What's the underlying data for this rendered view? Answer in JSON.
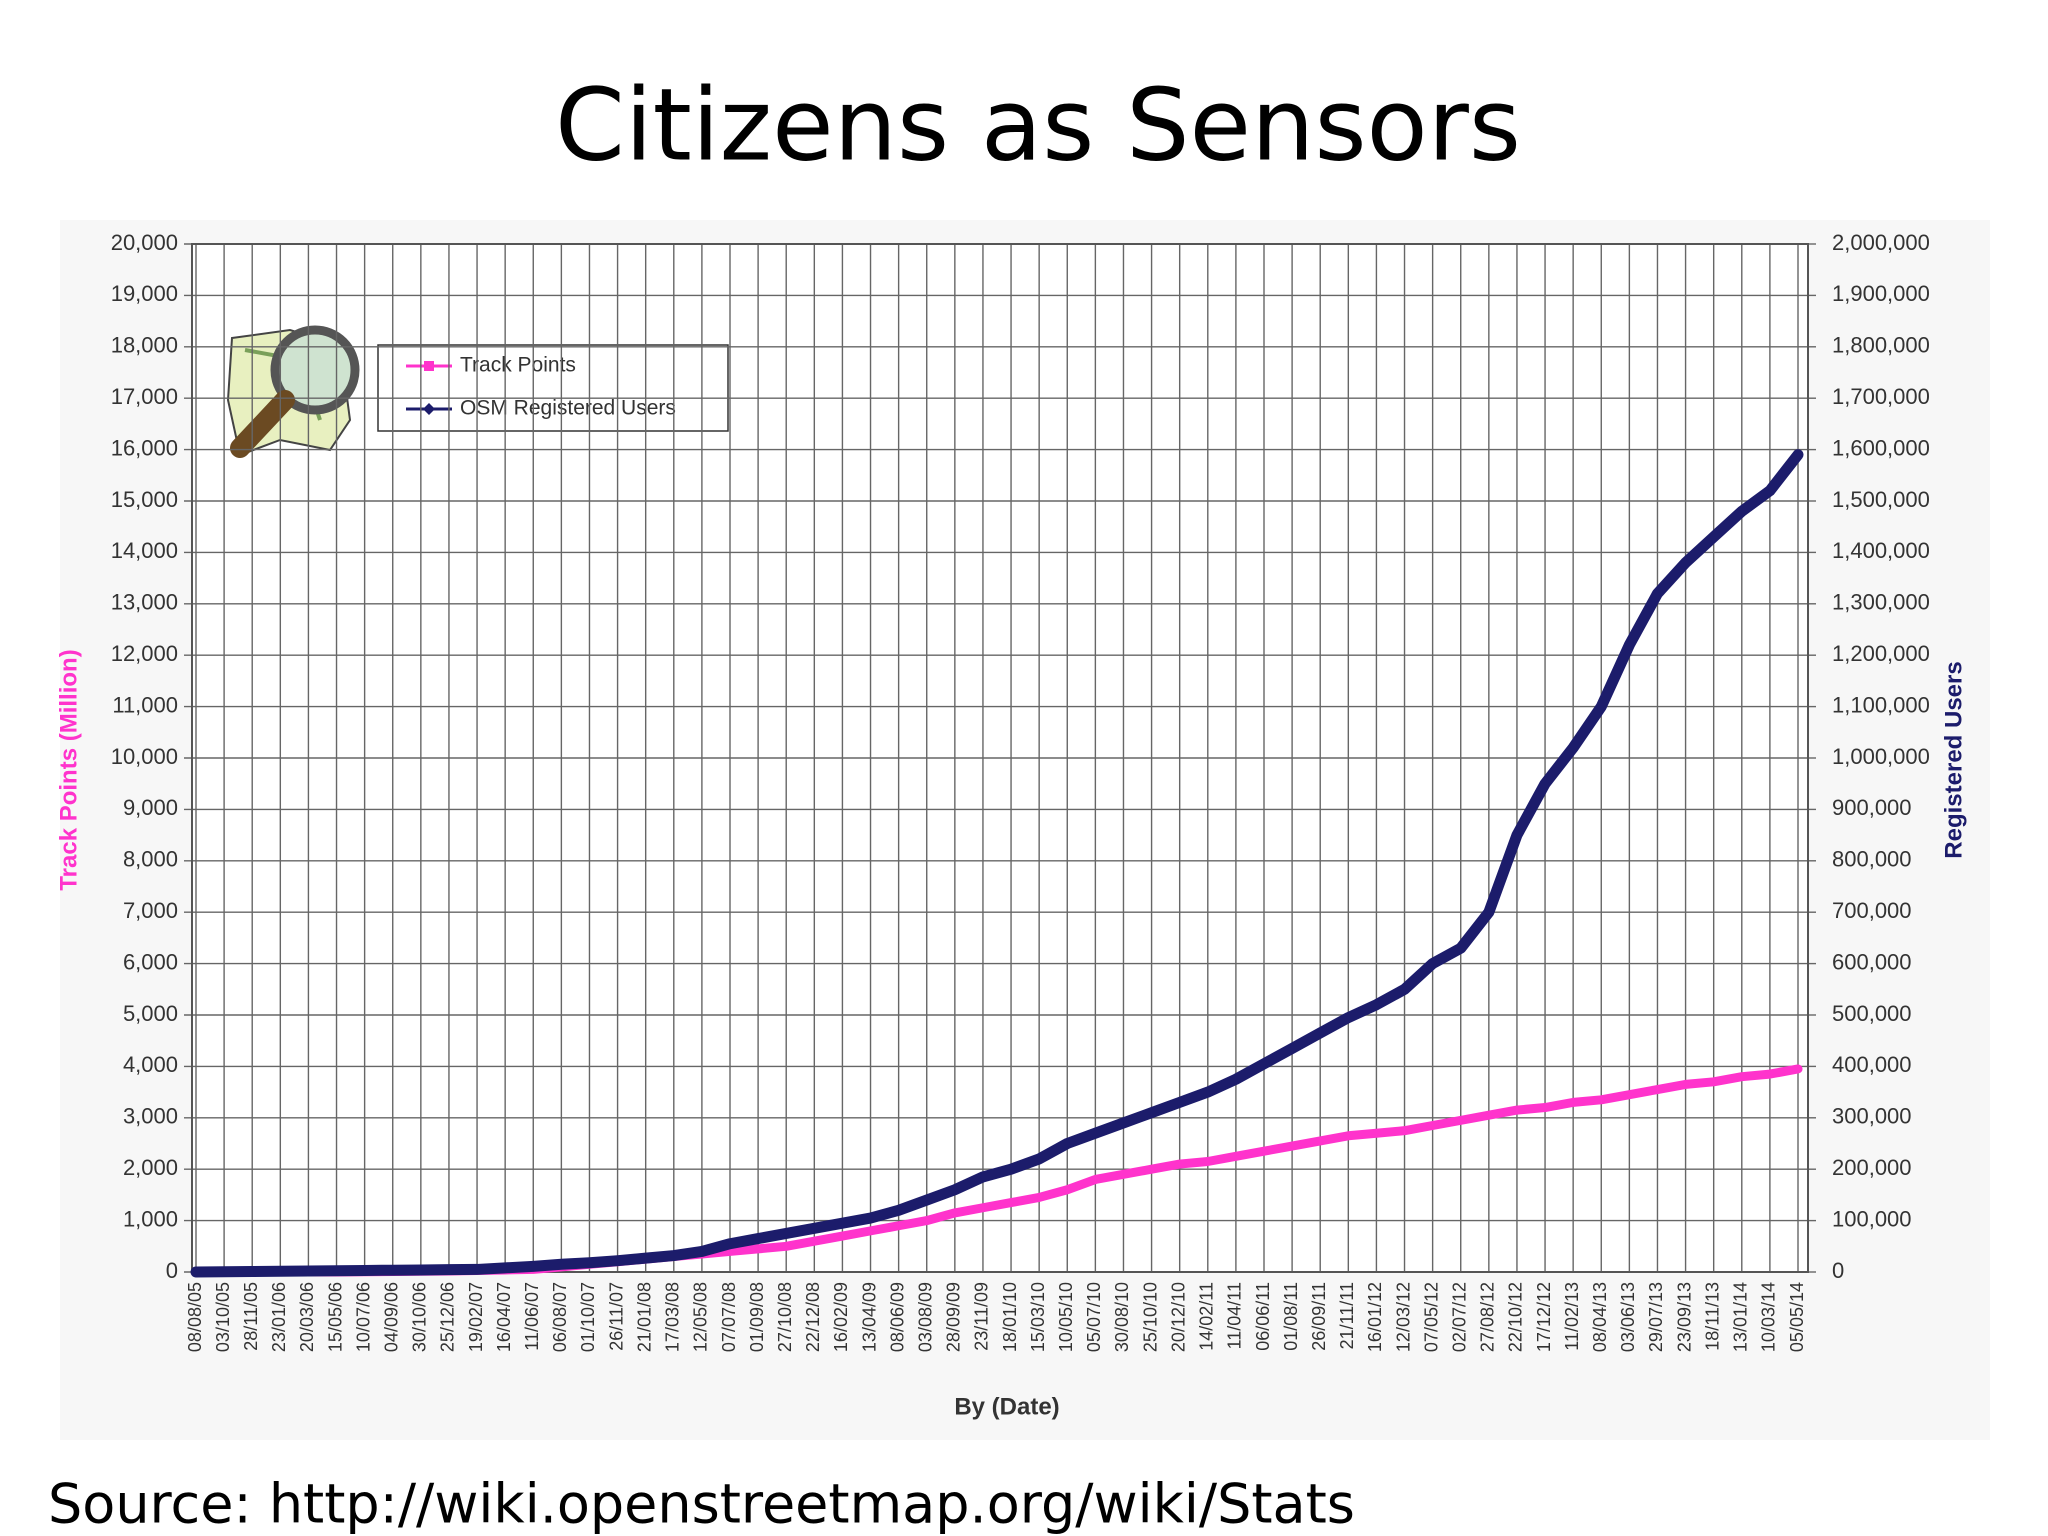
{
  "chart_data": {
    "type": "line",
    "title": "Citizens as Sensors",
    "source": "Source: http://wiki.openstreetmap.org/wiki/Stats",
    "xlabel": "By (Date)",
    "ylabel": "Track Points (Million)",
    "y2label": "Registered Users",
    "legend": "upper left",
    "grid": true,
    "categories": [
      "08/08/05",
      "03/10/05",
      "28/11/05",
      "23/01/06",
      "20/03/06",
      "15/05/06",
      "10/07/06",
      "04/09/06",
      "30/10/06",
      "25/12/06",
      "19/02/07",
      "16/04/07",
      "11/06/07",
      "06/08/07",
      "01/10/07",
      "26/11/07",
      "21/01/08",
      "17/03/08",
      "12/05/08",
      "07/07/08",
      "01/09/08",
      "27/10/08",
      "22/12/08",
      "16/02/09",
      "13/04/09",
      "08/06/09",
      "03/08/09",
      "28/09/09",
      "23/11/09",
      "18/01/10",
      "15/03/10",
      "10/05/10",
      "05/07/10",
      "30/08/10",
      "25/10/10",
      "20/12/10",
      "14/02/11",
      "11/04/11",
      "06/06/11",
      "01/08/11",
      "26/09/11",
      "21/11/11",
      "16/01/12",
      "12/03/12",
      "07/05/12",
      "02/07/12",
      "27/08/12",
      "22/10/12",
      "17/12/12",
      "11/02/13",
      "08/04/13",
      "03/06/13",
      "29/07/13",
      "23/09/13",
      "18/11/13",
      "13/01/14",
      "10/03/14",
      "05/05/14"
    ],
    "series": [
      {
        "name": "Track Points",
        "color": "#ff33cc",
        "axis": "y",
        "values": [
          0,
          0,
          0,
          0,
          0,
          0,
          5,
          10,
          15,
          20,
          30,
          40,
          50,
          100,
          150,
          200,
          250,
          300,
          350,
          400,
          450,
          500,
          600,
          700,
          800,
          900,
          1000,
          1150,
          1250,
          1350,
          1450,
          1600,
          1800,
          1900,
          2000,
          2100,
          2150,
          2250,
          2350,
          2450,
          2550,
          2650,
          2700,
          2750,
          2850,
          2950,
          3050,
          3150,
          3200,
          3300,
          3350,
          3450,
          3550,
          3650,
          3700,
          3800,
          3850,
          3950
        ]
      },
      {
        "name": "OSM Registered Users",
        "color": "#1c1c6b",
        "axis": "y2",
        "values": [
          0,
          500,
          1000,
          1500,
          2000,
          2500,
          3000,
          3500,
          4000,
          4500,
          5000,
          8000,
          11000,
          15000,
          18000,
          22000,
          27000,
          32000,
          40000,
          55000,
          65000,
          75000,
          85000,
          95000,
          105000,
          120000,
          140000,
          160000,
          185000,
          200000,
          220000,
          250000,
          270000,
          290000,
          310000,
          330000,
          350000,
          375000,
          405000,
          435000,
          465000,
          495000,
          520000,
          550000,
          600000,
          630000,
          700000,
          850000,
          950000,
          1020000,
          1100000,
          1220000,
          1320000,
          1380000,
          1430000,
          1480000,
          1520000,
          1590000
        ]
      }
    ],
    "ylim": [
      0,
      20000
    ],
    "yticks": [
      0,
      {
        "value": 1000,
        "label": "1,000"
      },
      {
        "value": 2000,
        "label": "2,000"
      },
      {
        "value": 3000,
        "label": "3,000"
      },
      {
        "value": 4000,
        "label": "4,000"
      },
      {
        "value": 5000,
        "label": "5,000"
      },
      {
        "value": 6000,
        "label": "6,000"
      },
      {
        "value": 7000,
        "label": "7,000"
      },
      {
        "value": 8000,
        "label": "8,000"
      },
      {
        "value": 9000,
        "label": "9,000"
      },
      {
        "value": 10000,
        "label": "10,000"
      },
      {
        "value": 11000,
        "label": "11,000"
      },
      {
        "value": 12000,
        "label": "12,000"
      },
      {
        "value": 13000,
        "label": "13,000"
      },
      {
        "value": 14000,
        "label": "14,000"
      },
      {
        "value": 15000,
        "label": "15,000"
      },
      {
        "value": 16000,
        "label": "16,000"
      },
      {
        "value": 17000,
        "label": "17,000"
      },
      {
        "value": 18000,
        "label": "18,000"
      },
      {
        "value": 19000,
        "label": "19,000"
      },
      {
        "value": 20000,
        "label": "20,000"
      }
    ],
    "y2lim": [
      0,
      2000000
    ],
    "y2ticks": [
      0,
      {
        "value": 100000,
        "label": "100,000"
      },
      {
        "value": 200000,
        "label": "200,000"
      },
      {
        "value": 300000,
        "label": "300,000"
      },
      {
        "value": 400000,
        "label": "400,000"
      },
      {
        "value": 500000,
        "label": "500,000"
      },
      {
        "value": 600000,
        "label": "600,000"
      },
      {
        "value": 700000,
        "label": "700,000"
      },
      {
        "value": 800000,
        "label": "800,000"
      },
      {
        "value": 900000,
        "label": "900,000"
      },
      {
        "value": 1000000,
        "label": "1,000,000"
      },
      {
        "value": 1100000,
        "label": "1,100,000"
      },
      {
        "value": 1200000,
        "label": "1,200,000"
      },
      {
        "value": 1300000,
        "label": "1,300,000"
      },
      {
        "value": 1400000,
        "label": "1,400,000"
      },
      {
        "value": 1500000,
        "label": "1,500,000"
      },
      {
        "value": 1600000,
        "label": "1,600,000"
      },
      {
        "value": 1700000,
        "label": "1,700,000"
      },
      {
        "value": 1800000,
        "label": "1,800,000"
      },
      {
        "value": 1900000,
        "label": "1,900,000"
      },
      {
        "value": 2000000,
        "label": "2,000,000"
      }
    ]
  }
}
